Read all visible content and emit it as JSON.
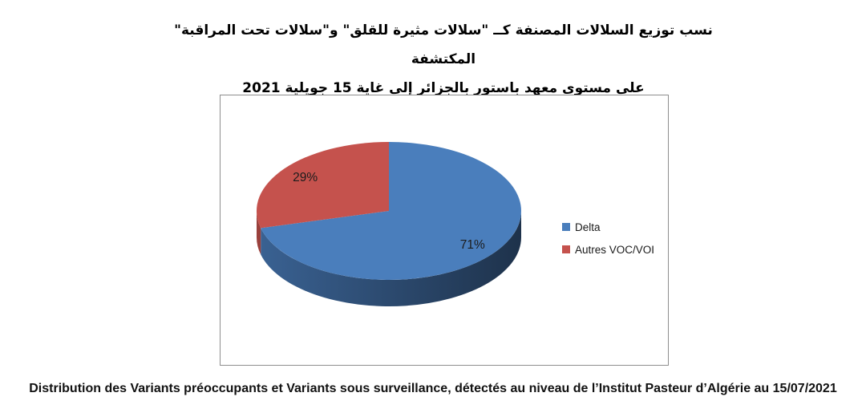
{
  "title": {
    "line1": "نسب توزيع السلالات المصنفة كــ \"سلالات مثيرة للقلق\" و\"سلالات تحت المراقبة\" المكتشفة",
    "line2": "على مستوى معهد باستور بالجزائر إلى غاية 15 جويلية 2021"
  },
  "chart_data": {
    "type": "pie",
    "style": "3d",
    "direction": "clockwise",
    "start_angle_deg": 0,
    "legend_position": "right",
    "series": [
      {
        "name": "Delta",
        "value": 71,
        "label": "71%",
        "color": "#4A7EBC"
      },
      {
        "name": "Autres VOC/VOI",
        "value": 29,
        "label": "29%",
        "color": "#C5524D"
      }
    ]
  },
  "caption": "Distribution des Variants préoccupants et Variants sous surveillance, détectés au niveau de l’Institut Pasteur d’Algérie au 15/07/2021"
}
